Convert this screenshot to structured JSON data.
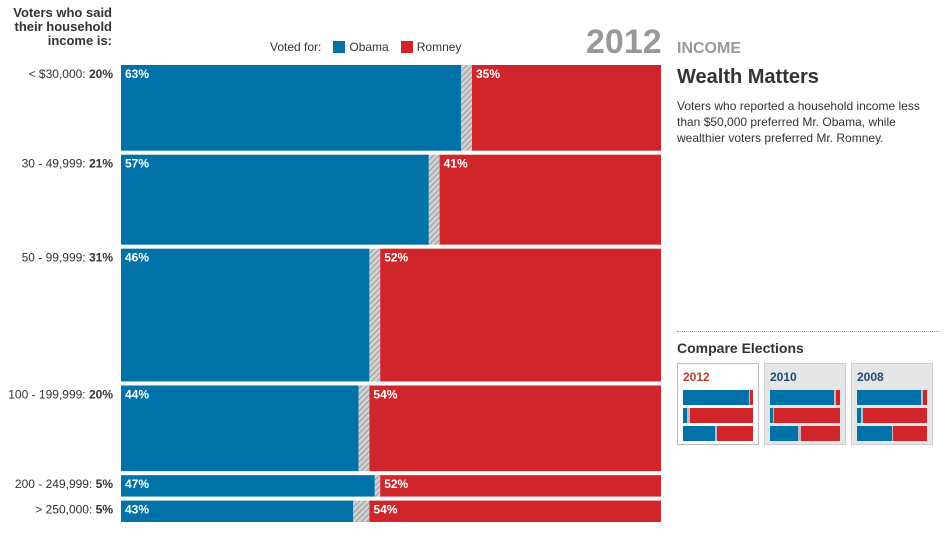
{
  "header": {
    "question": "Voters who said their household income is:",
    "legend_title": "Voted for:",
    "year": "2012",
    "category": "INCOME",
    "headline": "Wealth Matters",
    "description": "Voters who reported a household income less than $50,000 preferred Mr. Obama, while wealthier voters preferred Mr. Romney."
  },
  "compare": {
    "title": "Compare Elections",
    "elections": [
      {
        "label": "2012",
        "active": true,
        "rows": [
          [
            0.94,
            0.04
          ],
          [
            0.06,
            0.9
          ],
          [
            0.46,
            0.52
          ]
        ]
      },
      {
        "label": "2010",
        "active": false,
        "rows": [
          [
            0.92,
            0.06
          ],
          [
            0.04,
            0.94
          ],
          [
            0.4,
            0.56
          ]
        ]
      },
      {
        "label": "2008",
        "active": false,
        "rows": [
          [
            0.92,
            0.06
          ],
          [
            0.06,
            0.92
          ],
          [
            0.5,
            0.48
          ]
        ]
      }
    ]
  },
  "colors": {
    "obama": "#0072a8",
    "romney": "#d1252c",
    "other": "#bdbdbd"
  },
  "chart_data": {
    "type": "bar",
    "orientation": "horizontal-stacked-mosaic",
    "series": [
      {
        "name": "Obama",
        "values": [
          63,
          57,
          46,
          44,
          47,
          43
        ]
      },
      {
        "name": "Romney",
        "values": [
          35,
          41,
          52,
          54,
          52,
          54
        ]
      }
    ],
    "categories": [
      "< $30,000:",
      "30 - 49,999:",
      "50 - 99,999:",
      "100 - 199,999:",
      "200 - 249,999:",
      "> 250,000:"
    ],
    "shares": [
      20,
      21,
      31,
      20,
      5,
      5
    ],
    "share_labels": [
      "20%",
      "21%",
      "31%",
      "20%",
      "5%",
      "5%"
    ],
    "value_labels": {
      "obama": [
        "63%",
        "57%",
        "46%",
        "44%",
        "47%",
        "43%"
      ],
      "romney": [
        "35%",
        "41%",
        "52%",
        "54%",
        "52%",
        "54%"
      ]
    },
    "legend": [
      "Obama",
      "Romney"
    ],
    "xlim": [
      0,
      100
    ]
  }
}
